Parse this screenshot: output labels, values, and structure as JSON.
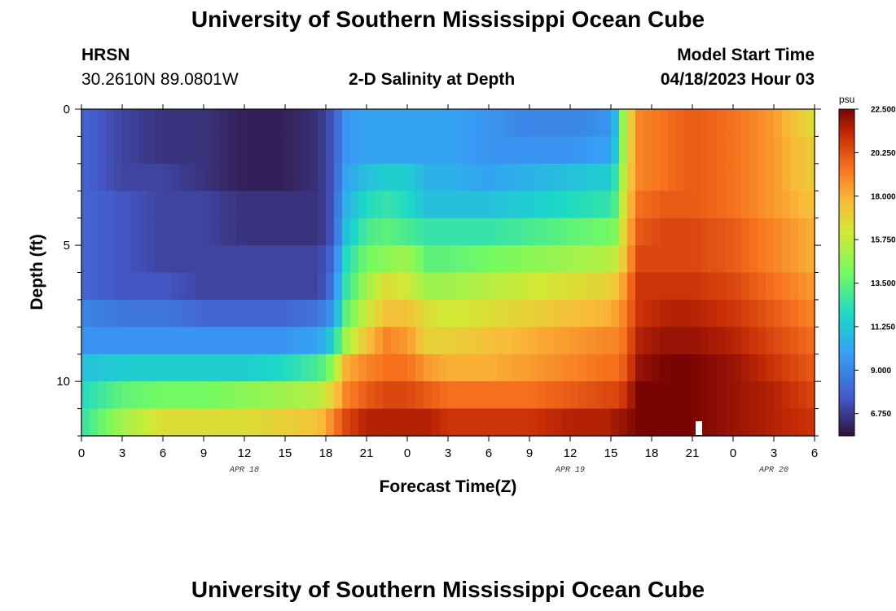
{
  "header": {
    "title": "University of Southern Mississippi Ocean Cube",
    "station": "HRSN",
    "coords": "30.2610N  89.0801W",
    "plot_title": "2-D Salinity at Depth",
    "start_label": "Model Start Time",
    "start_value": "04/18/2023 Hour 03"
  },
  "footer": {
    "title": "University of Southern Mississippi Ocean Cube"
  },
  "chart_data": {
    "type": "heatmap",
    "title": "2-D Salinity at Depth",
    "xlabel": "Forecast Time(Z)",
    "ylabel": "Depth (ft)",
    "x_range_hours": [
      0,
      54
    ],
    "y_range_ft": [
      0,
      12
    ],
    "x_tick_labels": [
      "0",
      "3",
      "6",
      "9",
      "12",
      "15",
      "18",
      "21",
      "0",
      "3",
      "6",
      "9",
      "12",
      "15",
      "18",
      "21",
      "0",
      "3",
      "6"
    ],
    "y_tick_labels": [
      "0",
      "5",
      "10"
    ],
    "y_tick_values": [
      0,
      5,
      10
    ],
    "date_labels": [
      {
        "text": "APR 18",
        "hour": 12
      },
      {
        "text": "APR 19",
        "hour": 36
      },
      {
        "text": "APR 20",
        "hour": 51
      }
    ],
    "colorbar": {
      "unit": "psu",
      "min": 5.6,
      "max": 22.5,
      "tick_labels": [
        "22.500",
        "20.250",
        "18.000",
        "15.750",
        "13.500",
        "11.250",
        "9.000",
        "6.750"
      ],
      "tick_values": [
        22.5,
        20.25,
        18.0,
        15.75,
        13.5,
        11.25,
        9.0,
        6.75
      ]
    },
    "depth_layers_ft": [
      0.5,
      1.5,
      2.5,
      3.5,
      4.5,
      5.5,
      6.5,
      7.5,
      8.5,
      9.5,
      10.5,
      11.5
    ],
    "time_key_hours": [
      0,
      3,
      6,
      9,
      12,
      15,
      17.5,
      18.5,
      19.5,
      21,
      22.5,
      24,
      25.5,
      27,
      30,
      33,
      36,
      39,
      39.5,
      40,
      41,
      43,
      45,
      48,
      51,
      54
    ],
    "salinity_psu": [
      [
        8.0,
        7.0,
        6.5,
        6.5,
        6.0,
        6.0,
        6.5,
        7.5,
        9.5,
        10.0,
        10.0,
        10.0,
        10.0,
        10.0,
        9.5,
        9.0,
        9.0,
        9.5,
        11.5,
        15.5,
        19.0,
        19.5,
        20.0,
        19.5,
        18.5,
        16.5
      ],
      [
        8.0,
        7.0,
        6.5,
        6.5,
        6.0,
        6.0,
        6.5,
        7.5,
        9.5,
        10.0,
        10.0,
        10.0,
        10.0,
        10.0,
        9.5,
        9.5,
        9.5,
        10.0,
        12.0,
        15.5,
        19.0,
        19.5,
        20.0,
        19.5,
        18.5,
        17.0
      ],
      [
        8.0,
        7.0,
        7.0,
        6.5,
        6.0,
        6.0,
        6.5,
        7.5,
        10.0,
        11.0,
        11.5,
        11.5,
        10.5,
        10.5,
        10.0,
        10.5,
        11.0,
        11.5,
        13.0,
        16.0,
        19.0,
        19.5,
        20.0,
        19.5,
        18.5,
        17.0
      ],
      [
        8.0,
        7.5,
        7.0,
        7.0,
        6.5,
        6.5,
        6.5,
        7.5,
        10.5,
        12.0,
        12.5,
        12.0,
        11.0,
        11.0,
        11.0,
        11.5,
        12.0,
        12.5,
        13.5,
        16.5,
        19.5,
        20.0,
        20.0,
        19.5,
        18.5,
        17.5
      ],
      [
        8.0,
        7.5,
        7.0,
        7.0,
        6.5,
        6.5,
        6.5,
        7.5,
        11.0,
        13.0,
        13.5,
        13.0,
        12.5,
        12.5,
        12.5,
        13.0,
        13.5,
        14.0,
        14.5,
        17.0,
        20.0,
        20.5,
        20.5,
        20.0,
        19.0,
        18.0
      ],
      [
        8.0,
        7.5,
        7.0,
        7.0,
        7.0,
        7.0,
        7.0,
        8.0,
        12.0,
        14.0,
        14.5,
        15.0,
        13.5,
        13.5,
        14.0,
        14.5,
        15.0,
        15.5,
        16.0,
        17.5,
        20.5,
        20.5,
        20.5,
        20.0,
        19.0,
        18.0
      ],
      [
        8.0,
        7.5,
        7.5,
        7.0,
        7.0,
        7.0,
        7.0,
        8.5,
        12.5,
        15.0,
        16.5,
        16.0,
        15.0,
        15.0,
        15.5,
        16.0,
        16.5,
        17.0,
        17.5,
        18.5,
        21.0,
        21.0,
        21.0,
        20.5,
        19.5,
        18.5
      ],
      [
        9.0,
        8.5,
        8.5,
        8.0,
        8.0,
        8.0,
        8.5,
        9.5,
        13.5,
        16.0,
        17.5,
        17.5,
        16.5,
        16.0,
        16.5,
        17.0,
        17.5,
        18.0,
        18.5,
        19.0,
        21.0,
        21.5,
        21.5,
        21.0,
        20.0,
        19.0
      ],
      [
        9.5,
        9.5,
        9.5,
        9.5,
        9.5,
        9.5,
        10.0,
        11.5,
        15.0,
        17.5,
        19.0,
        18.5,
        17.0,
        17.0,
        17.5,
        18.0,
        18.5,
        19.0,
        19.0,
        19.5,
        21.5,
        22.0,
        22.0,
        21.5,
        20.5,
        19.5
      ],
      [
        11.0,
        11.5,
        11.5,
        11.5,
        11.5,
        12.0,
        13.0,
        14.5,
        18.0,
        19.0,
        19.5,
        19.5,
        18.5,
        18.0,
        18.0,
        18.5,
        19.0,
        19.5,
        19.5,
        20.0,
        22.0,
        22.5,
        22.5,
        22.0,
        21.0,
        20.0
      ],
      [
        12.0,
        13.5,
        14.0,
        14.0,
        14.5,
        15.0,
        15.5,
        17.0,
        19.0,
        20.0,
        20.5,
        20.5,
        20.0,
        19.5,
        19.5,
        19.5,
        20.0,
        20.5,
        20.5,
        21.0,
        22.5,
        22.5,
        22.5,
        22.0,
        21.5,
        20.5
      ],
      [
        12.5,
        15.0,
        16.5,
        16.5,
        16.5,
        17.0,
        17.5,
        19.0,
        20.5,
        21.5,
        21.5,
        21.5,
        21.5,
        21.0,
        21.0,
        21.0,
        21.5,
        21.5,
        22.0,
        22.0,
        22.5,
        22.5,
        22.5,
        22.0,
        21.5,
        21.0
      ]
    ]
  }
}
